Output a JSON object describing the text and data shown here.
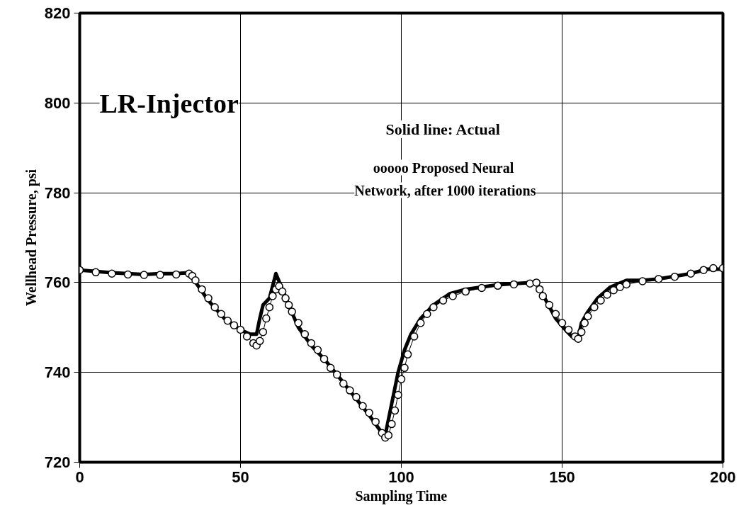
{
  "chart_data": {
    "type": "line",
    "xlabel": "Sampling Time",
    "ylabel": "Wellhead Pressure, psi",
    "annotations": [
      "LR-Injector",
      "Solid line:  Actual",
      "ooooo  Proposed Neural",
      "Network, after 1000 iterations"
    ],
    "xlim": [
      0,
      200
    ],
    "xticks": [
      0,
      50,
      100,
      150,
      200
    ],
    "ylim": [
      720,
      820
    ],
    "yticks": [
      720,
      740,
      760,
      780,
      800,
      820
    ],
    "grid": true,
    "series": [
      {
        "color": "#000000",
        "marker": "none",
        "line_style": "solid",
        "x": [
          0,
          10,
          20,
          25,
          30,
          34,
          40,
          45,
          50,
          53,
          55,
          56,
          57,
          59,
          61,
          65,
          68,
          72,
          76,
          80,
          85,
          90,
          94,
          95,
          97,
          99,
          101,
          103,
          106,
          110,
          115,
          120,
          130,
          140,
          142,
          145,
          148,
          151,
          153,
          155,
          156,
          158,
          161,
          165,
          170,
          175,
          180,
          190,
          195,
          200
        ],
        "values": [
          762.8,
          762.2,
          761.8,
          762,
          762,
          762.2,
          756,
          752,
          749.5,
          748.5,
          748.5,
          752,
          755,
          756.5,
          762,
          755,
          750,
          746,
          743,
          739.5,
          735,
          730.5,
          726.5,
          726,
          733,
          740,
          745,
          748.5,
          752,
          755,
          757.5,
          758.5,
          759.5,
          760,
          760,
          756,
          752,
          749.5,
          748,
          747.5,
          751,
          753.5,
          756.5,
          759,
          760.5,
          760.5,
          760.8,
          762,
          763,
          763
        ]
      },
      {
        "color": "#000000",
        "marker": "circle",
        "line_style": "solid",
        "x": [
          0,
          5,
          10,
          15,
          20,
          25,
          30,
          34,
          35,
          36,
          38,
          40,
          42,
          44,
          46,
          48,
          50,
          52,
          54,
          55,
          56,
          57,
          58,
          59,
          60,
          61,
          62,
          63,
          64,
          65,
          66,
          68,
          70,
          72,
          74,
          76,
          78,
          80,
          82,
          84,
          86,
          88,
          90,
          92,
          94,
          95,
          96,
          97,
          98,
          99,
          100,
          101,
          102,
          104,
          106,
          108,
          110,
          113,
          116,
          120,
          125,
          130,
          135,
          140,
          142,
          143,
          144,
          146,
          148,
          150,
          152,
          154,
          155,
          156,
          157,
          158,
          160,
          162,
          164,
          166,
          168,
          170,
          175,
          180,
          185,
          190,
          194,
          197,
          200
        ],
        "values": [
          762.8,
          762.3,
          762,
          761.8,
          761.7,
          761.7,
          761.8,
          762,
          761.5,
          760.5,
          758.5,
          756.5,
          754.5,
          753,
          751.5,
          750.5,
          749.5,
          748,
          746.5,
          746,
          747,
          749,
          752,
          754.5,
          757,
          758.5,
          759.2,
          758,
          756.5,
          755,
          753.5,
          751,
          748.5,
          746.5,
          745,
          743,
          741,
          739.5,
          737.5,
          736,
          734.5,
          732.5,
          731,
          729,
          726.5,
          725.5,
          726,
          728.5,
          731.5,
          735,
          738.5,
          741,
          744,
          748,
          751,
          753,
          754.5,
          756,
          757,
          758,
          758.8,
          759.3,
          759.6,
          759.8,
          760,
          758.5,
          757,
          755,
          753,
          751,
          749.5,
          748,
          747.5,
          749,
          751,
          752.5,
          754.5,
          756,
          757.3,
          758.3,
          759,
          759.6,
          760.3,
          760.8,
          761.3,
          762,
          762.8,
          763.2,
          763.2
        ]
      }
    ]
  }
}
